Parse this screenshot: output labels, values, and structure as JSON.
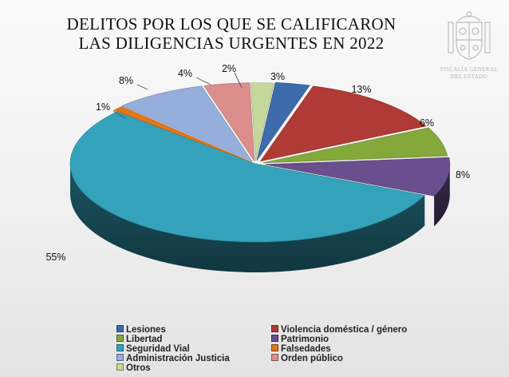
{
  "title": {
    "line1": "DELITOS POR LOS QUE SE CALIFICARON",
    "line2": "LAS DILIGENCIAS URGENTES EN 2022"
  },
  "logo": {
    "line1": "FISCALÍA GENERAL",
    "line2": "DEL ESTADO"
  },
  "chart_data": {
    "type": "pie",
    "title": "DELITOS POR LOS QUE SE CALIFICARON LAS DILIGENCIAS URGENTES EN 2022",
    "legend_position": "bottom",
    "slices": [
      {
        "name": "Lesiones",
        "value": 3,
        "label": "3%",
        "color": "#3d6bab"
      },
      {
        "name": "Violencia doméstica / género",
        "value": 13,
        "label": "13%",
        "color": "#b03a36"
      },
      {
        "name": "Libertad",
        "value": 6,
        "label": "6%",
        "color": "#84a83a"
      },
      {
        "name": "Patrimonio",
        "value": 8,
        "label": "8%",
        "color": "#6a4f8e"
      },
      {
        "name": "Seguridad Vial",
        "value": 55,
        "label": "55%",
        "color": "#33a2ba"
      },
      {
        "name": "Falsedades",
        "value": 1,
        "label": "1%",
        "color": "#e0771c"
      },
      {
        "name": "Administración Justicia",
        "value": 8,
        "label": "8%",
        "color": "#96aedc"
      },
      {
        "name": "Orden público",
        "value": 4,
        "label": "4%",
        "color": "#dc8e8c"
      },
      {
        "name": "Otros",
        "value": 2,
        "label": "2%",
        "color": "#c3d89a"
      }
    ]
  }
}
